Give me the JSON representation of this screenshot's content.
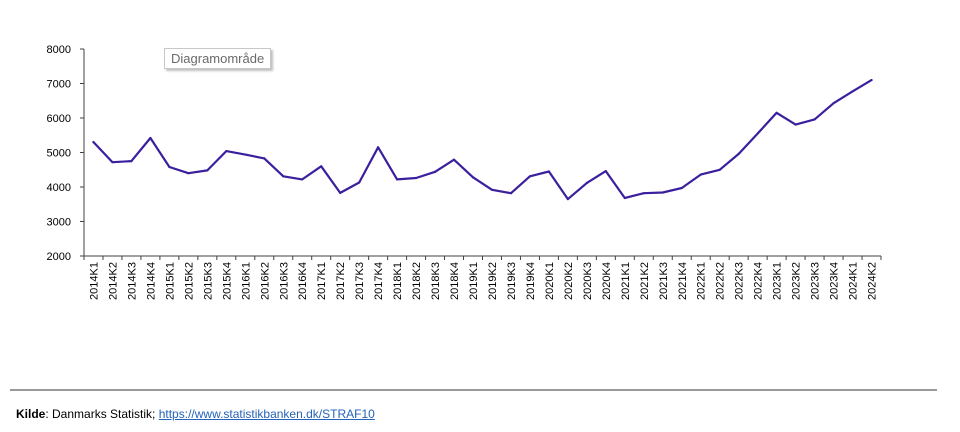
{
  "chart_data": {
    "type": "line",
    "title": "",
    "xlabel": "",
    "ylabel": "",
    "ylim": [
      2000,
      8000
    ],
    "yticks": [
      2000,
      3000,
      4000,
      5000,
      6000,
      7000,
      8000
    ],
    "categories": [
      "2014K1",
      "2014K2",
      "2014K3",
      "2014K4",
      "2015K1",
      "2015K2",
      "2015K3",
      "2015K4",
      "2016K1",
      "2016K2",
      "2016K3",
      "2016K4",
      "2017K1",
      "2017K2",
      "2017K3",
      "2017K4",
      "2018K1",
      "2018K2",
      "2018K3",
      "2018K4",
      "2019K1",
      "2019K2",
      "2019K3",
      "2019K4",
      "2020K1",
      "2020K2",
      "2020K3",
      "2020K4",
      "2021K1",
      "2021K2",
      "2021K3",
      "2021K4",
      "2022K1",
      "2022K2",
      "2022K3",
      "2022K4",
      "2023K1",
      "2023K2",
      "2023K3",
      "2023K4",
      "2024K1",
      "2024K2"
    ],
    "series": [
      {
        "name": "",
        "color": "#3b1f9e",
        "values": [
          5300,
          4720,
          4750,
          5420,
          4580,
          4400,
          4480,
          5040,
          4940,
          4830,
          4310,
          4220,
          4600,
          3830,
          4130,
          5150,
          4220,
          4260,
          4440,
          4790,
          4280,
          3920,
          3820,
          4310,
          4450,
          3650,
          4120,
          4460,
          3680,
          3820,
          3840,
          3970,
          4360,
          4500,
          4960,
          5550,
          6150,
          5810,
          5960,
          6430,
          6770,
          7100
        ]
      }
    ]
  },
  "tooltip": {
    "text": "Diagramområde"
  },
  "footer": {
    "label": "Kilde",
    "text": ": Danmarks Statistik; ",
    "link_text": "https://www.statistikbanken.dk/STRAF10"
  },
  "colors": {
    "axis": "#404040",
    "link": "#2563b8",
    "divider": "#9a9a9a"
  }
}
